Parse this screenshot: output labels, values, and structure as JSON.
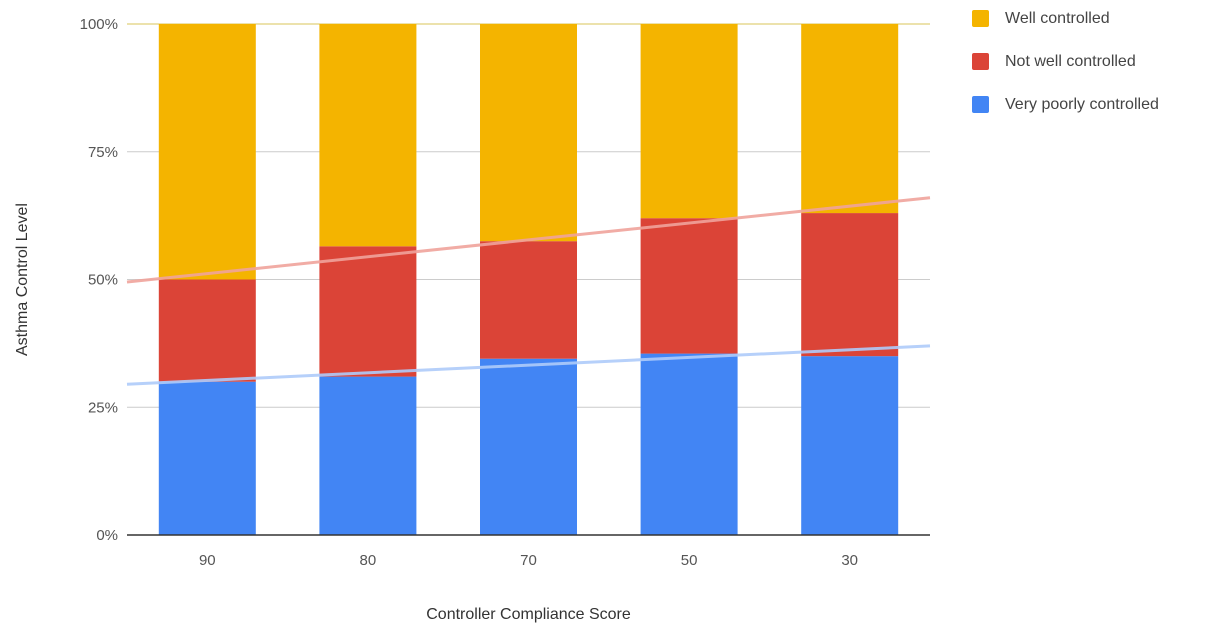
{
  "chart_data": {
    "type": "bar",
    "stacked": true,
    "percent_stacked": true,
    "categories": [
      "90",
      "80",
      "70",
      "50",
      "30"
    ],
    "series": [
      {
        "name": "Very poorly controlled",
        "color": "#4285f4",
        "values": [
          30,
          31,
          34.5,
          35.5,
          35
        ],
        "trendline": {
          "color": "#aecbfa",
          "start": 29.5,
          "end": 37
        }
      },
      {
        "name": "Not well controlled",
        "color": "#db4437",
        "values": [
          20,
          25.5,
          23,
          26.5,
          28
        ],
        "trendline": {
          "color": "#f0a39b",
          "start": 49.5,
          "end": 66
        }
      },
      {
        "name": "Well controlled",
        "color": "#f4b400",
        "values": [
          50,
          43.5,
          42.5,
          38,
          37
        ]
      }
    ],
    "stack_order": [
      "Very poorly controlled",
      "Not well controlled",
      "Well controlled"
    ],
    "xlabel": "Controller Compliance Score",
    "ylabel": "Asthma Control Level",
    "ylim": [
      0,
      100
    ],
    "yticks": [
      "0%",
      "25%",
      "50%",
      "75%",
      "100%"
    ],
    "grid": true,
    "legend_position": "right"
  },
  "legend": {
    "items": [
      {
        "label": "Well controlled",
        "color": "#f4b400"
      },
      {
        "label": "Not well controlled",
        "color": "#db4437"
      },
      {
        "label": "Very poorly controlled",
        "color": "#4285f4"
      }
    ]
  }
}
